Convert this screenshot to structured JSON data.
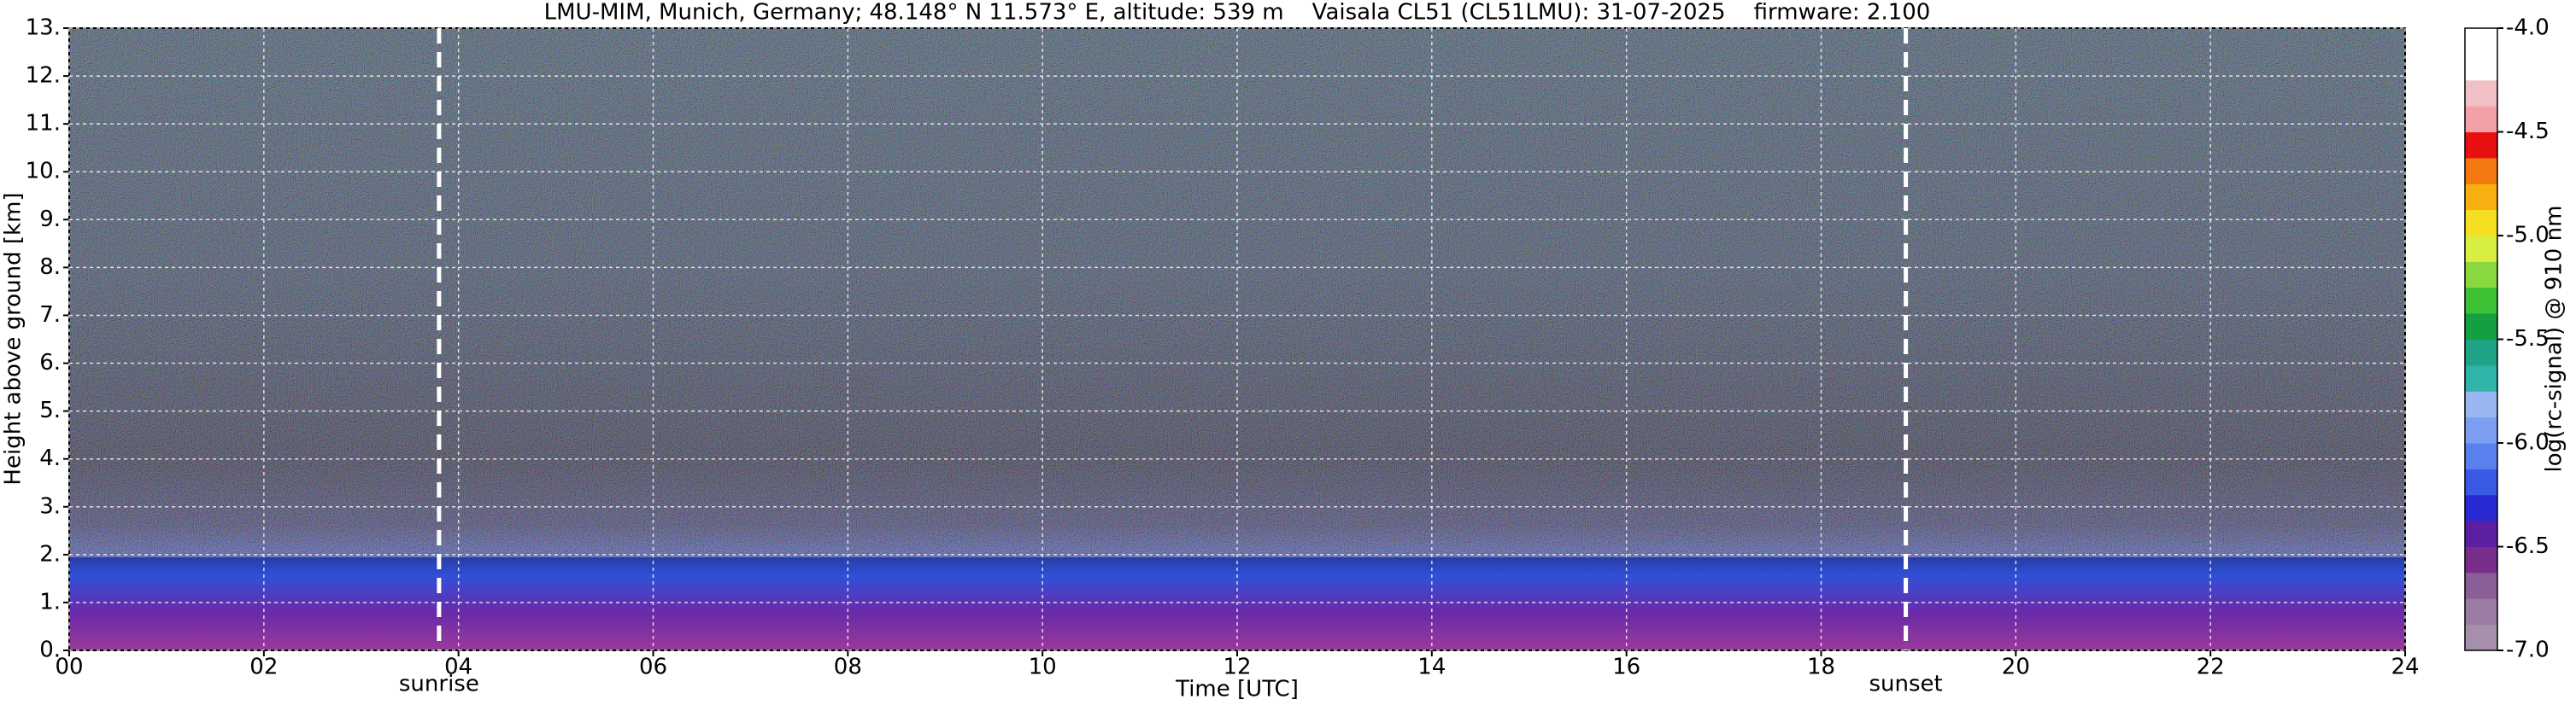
{
  "chart_data": {
    "type": "heatmap",
    "title": "LMU-MIM, Munich, Germany; 48.148° N 11.573° E, altitude: 539 m    Vaisala CL51 (CL51LMU): 31-07-2025    firmware: 2.100",
    "x_label": "Time [UTC]",
    "y_label": "Height above ground [km]",
    "xlim": [
      0,
      24
    ],
    "xticks": [
      {
        "value": 0,
        "label": "00"
      },
      {
        "value": 2,
        "label": "02"
      },
      {
        "value": 4,
        "label": "04"
      },
      {
        "value": 6,
        "label": "06"
      },
      {
        "value": 8,
        "label": "08"
      },
      {
        "value": 10,
        "label": "10"
      },
      {
        "value": 12,
        "label": "12"
      },
      {
        "value": 14,
        "label": "14"
      },
      {
        "value": 16,
        "label": "16"
      },
      {
        "value": 18,
        "label": "18"
      },
      {
        "value": 20,
        "label": "20"
      },
      {
        "value": 22,
        "label": "22"
      },
      {
        "value": 24,
        "label": "24"
      }
    ],
    "ylim": [
      0,
      13
    ],
    "yticks": [
      {
        "value": 0,
        "label": "0."
      },
      {
        "value": 1,
        "label": "1."
      },
      {
        "value": 2,
        "label": "2."
      },
      {
        "value": 3,
        "label": "3."
      },
      {
        "value": 4,
        "label": "4."
      },
      {
        "value": 5,
        "label": "5."
      },
      {
        "value": 6,
        "label": "6."
      },
      {
        "value": 7,
        "label": "7."
      },
      {
        "value": 8,
        "label": "8."
      },
      {
        "value": 9,
        "label": "9."
      },
      {
        "value": 10,
        "label": "10."
      },
      {
        "value": 11,
        "label": "11."
      },
      {
        "value": 12,
        "label": "12."
      },
      {
        "value": 13,
        "label": "13."
      }
    ],
    "grid": true,
    "annotations": [
      {
        "text": "sunrise",
        "x": 3.8
      },
      {
        "text": "sunset",
        "x": 18.87
      }
    ],
    "colorbar": {
      "label": "log(rc-signal) @ 910 nm",
      "lim": [
        -7.0,
        -4.0
      ],
      "ticks": [
        {
          "value": -7.0,
          "label": "-7.0"
        },
        {
          "value": -6.5,
          "label": "-6.5"
        },
        {
          "value": -6.0,
          "label": "-6.0"
        },
        {
          "value": -5.5,
          "label": "-5.5"
        },
        {
          "value": -5.0,
          "label": "-5.0"
        },
        {
          "value": -4.5,
          "label": "-4.5"
        },
        {
          "value": -4.0,
          "label": "-4.0"
        }
      ],
      "colors": [
        "#a68fab",
        "#9a7ca2",
        "#8c5e98",
        "#7a2e8c",
        "#5c1ea2",
        "#2a2ad2",
        "#3a5ae6",
        "#5a80ee",
        "#7c9ef0",
        "#9ab6f2",
        "#30b4a8",
        "#20a488",
        "#14a040",
        "#3cc034",
        "#8ad840",
        "#d8ee40",
        "#f4e020",
        "#f8b010",
        "#f47810",
        "#e81010",
        "#f4a0a8",
        "#f0c0c4",
        "#ffffff",
        "#ffffff"
      ]
    }
  }
}
